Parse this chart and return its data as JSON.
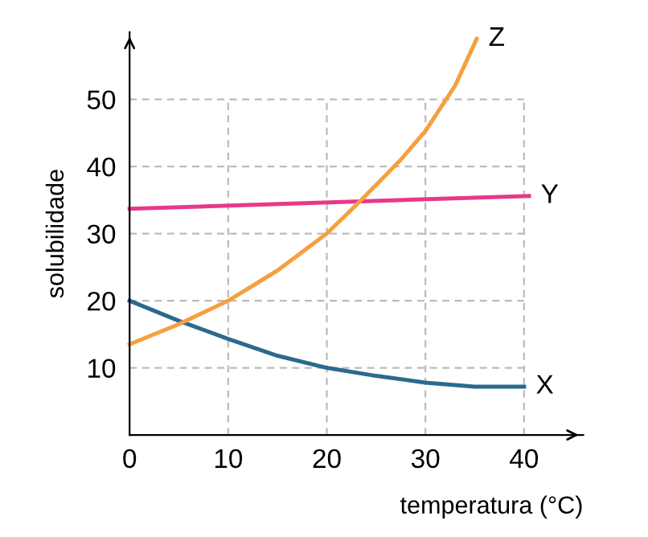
{
  "chart_data": {
    "type": "line",
    "xlabel": "temperatura (°C)",
    "ylabel": "solubilidade",
    "xlim": [
      0,
      46
    ],
    "ylim": [
      0,
      60
    ],
    "xticks": [
      0,
      10,
      20,
      30,
      40
    ],
    "yticks": [
      10,
      20,
      30,
      40,
      50
    ],
    "grid": true,
    "line_style": "solid",
    "marker": "none",
    "series": [
      {
        "name": "X",
        "color": "#2a6a8e",
        "x": [
          0,
          5,
          10,
          15,
          20,
          25,
          30,
          35,
          40
        ],
        "values": [
          20,
          17,
          14.3,
          11.8,
          10,
          8.8,
          7.8,
          7.2,
          7.2
        ]
      },
      {
        "name": "Y",
        "color": "#e8388a",
        "x": [
          0,
          40.5
        ],
        "values": [
          33.7,
          35.6
        ]
      },
      {
        "name": "Z",
        "color": "#f5a040",
        "x": [
          0,
          5,
          10,
          15,
          20,
          23.5,
          27.5,
          30,
          33,
          35.2
        ],
        "values": [
          13.5,
          16.5,
          20,
          24.5,
          30,
          35,
          41,
          45.3,
          52,
          59
        ]
      }
    ]
  }
}
